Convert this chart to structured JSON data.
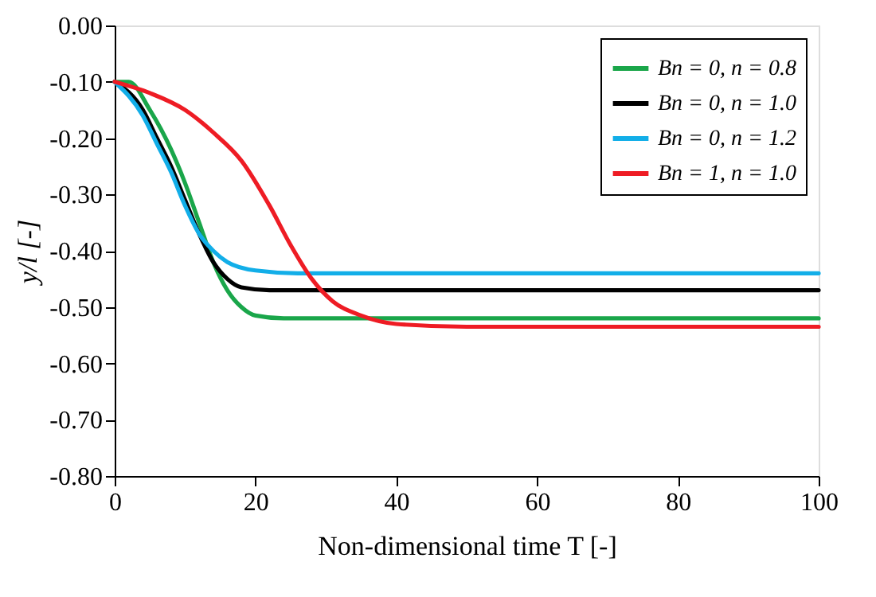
{
  "chart_data": {
    "type": "line",
    "xlabel": "Non-dimensional time T [-]",
    "ylabel": "y/l [-]",
    "xlim": [
      0,
      100
    ],
    "xticks": [
      0,
      20,
      40,
      60,
      80,
      100
    ],
    "ylim": [
      -0.8,
      0.0
    ],
    "yticks": [
      {
        "value": -0.8,
        "label": "-0.80"
      },
      {
        "value": -0.7,
        "label": "-0.70"
      },
      {
        "value": -0.6,
        "label": "-0.60"
      },
      {
        "value": -0.5,
        "label": "-0.50"
      },
      {
        "value": -0.4,
        "label": "-0.40"
      },
      {
        "value": -0.3,
        "label": "-0.30"
      },
      {
        "value": -0.2,
        "label": "-0.20"
      },
      {
        "value": -0.1,
        "label": "-0.10"
      },
      {
        "value": 0.0,
        "label": "0.00"
      }
    ],
    "grid": false,
    "legend": "top right",
    "line_style": "solid",
    "marker": "none",
    "series": [
      {
        "name": "Bn = 0, n = 0.8",
        "color": "#1aa64a",
        "x": [
          0,
          2,
          5,
          8,
          10,
          12,
          14,
          16,
          18,
          20,
          24,
          30,
          100
        ],
        "values": [
          -0.1,
          -0.1,
          -0.15,
          -0.22,
          -0.28,
          -0.35,
          -0.42,
          -0.47,
          -0.5,
          -0.515,
          -0.52,
          -0.52,
          -0.52
        ]
      },
      {
        "name": "Bn = 0, n = 1.0",
        "color": "#000000",
        "x": [
          0,
          4,
          6,
          8,
          10,
          12,
          14,
          16,
          18,
          22,
          30,
          100
        ],
        "values": [
          -0.1,
          -0.15,
          -0.2,
          -0.25,
          -0.31,
          -0.37,
          -0.42,
          -0.45,
          -0.465,
          -0.47,
          -0.47,
          -0.47
        ]
      },
      {
        "name": "Bn = 0, n = 1.2",
        "color": "#12aee8",
        "x": [
          0,
          4,
          6,
          8,
          10,
          12,
          14,
          16,
          20,
          26,
          100
        ],
        "values": [
          -0.1,
          -0.16,
          -0.21,
          -0.26,
          -0.32,
          -0.37,
          -0.4,
          -0.42,
          -0.435,
          -0.44,
          -0.44
        ]
      },
      {
        "name": "Bn = 1, n = 1.0",
        "color": "#ee1c24",
        "x": [
          0,
          5,
          10,
          14,
          18,
          22,
          25,
          28,
          31,
          35,
          40,
          50,
          100
        ],
        "values": [
          -0.1,
          -0.12,
          -0.15,
          -0.19,
          -0.24,
          -0.32,
          -0.39,
          -0.45,
          -0.49,
          -0.515,
          -0.53,
          -0.535,
          -0.535
        ]
      }
    ]
  }
}
